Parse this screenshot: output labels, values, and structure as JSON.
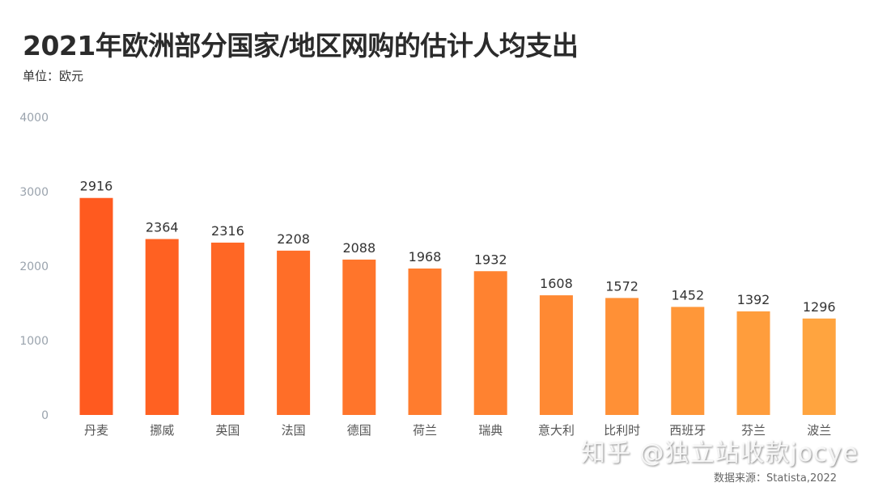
{
  "chart_data": {
    "type": "bar",
    "title": "2021年欧洲部分国家/地区网购的估计人均支出",
    "subtitle": "单位：欧元",
    "categories": [
      "丹麦",
      "挪威",
      "英国",
      "法国",
      "德国",
      "荷兰",
      "瑞典",
      "意大利",
      "比利时",
      "西班牙",
      "芬兰",
      "波兰"
    ],
    "values": [
      2916,
      2364,
      2316,
      2208,
      2088,
      1968,
      1932,
      1608,
      1572,
      1452,
      1392,
      1296
    ],
    "ylim": [
      0,
      4000
    ],
    "yticks": [
      0,
      1000,
      2000,
      3000,
      4000
    ],
    "grid": false,
    "colors": {
      "start": "#ff5a1f",
      "end": "#ffa43f"
    },
    "source": "数据来源：Statista,2022"
  },
  "watermark": "知乎 @独立站收款jocye"
}
